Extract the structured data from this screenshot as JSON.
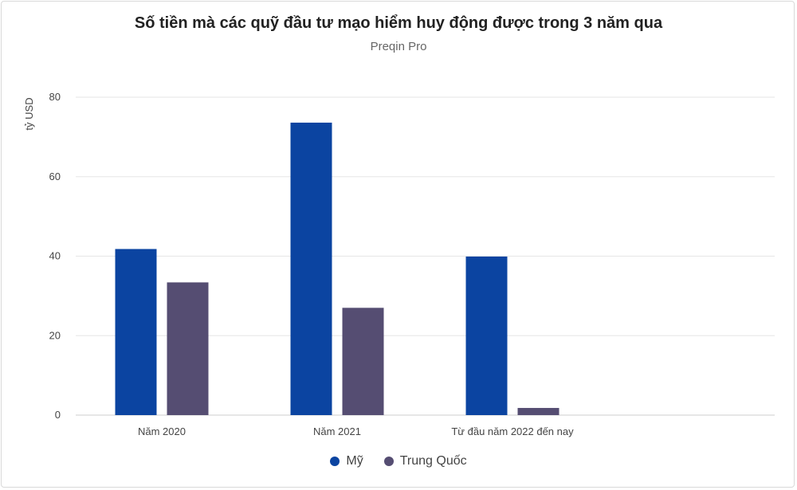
{
  "chart_data": {
    "type": "bar",
    "title": "Số tiền mà các quỹ đầu tư mạo hiểm huy động được trong 3 năm qua",
    "subtitle": "Preqin Pro",
    "xlabel": "",
    "ylabel": "tỷ USD",
    "categories": [
      "Năm 2020",
      "Năm 2021",
      "Từ đầu năm 2022 đến nay"
    ],
    "series": [
      {
        "name": "Mỹ",
        "color": "#0b44a1",
        "values": [
          41.8,
          73.6,
          39.9
        ]
      },
      {
        "name": "Trung Quốc",
        "color": "#554d72",
        "values": [
          33.4,
          27.0,
          1.8
        ]
      }
    ],
    "ylim": [
      0,
      80
    ],
    "yticks": [
      "0",
      "20",
      "40",
      "60",
      "80"
    ],
    "grid": true,
    "legend": "bottom-center"
  }
}
